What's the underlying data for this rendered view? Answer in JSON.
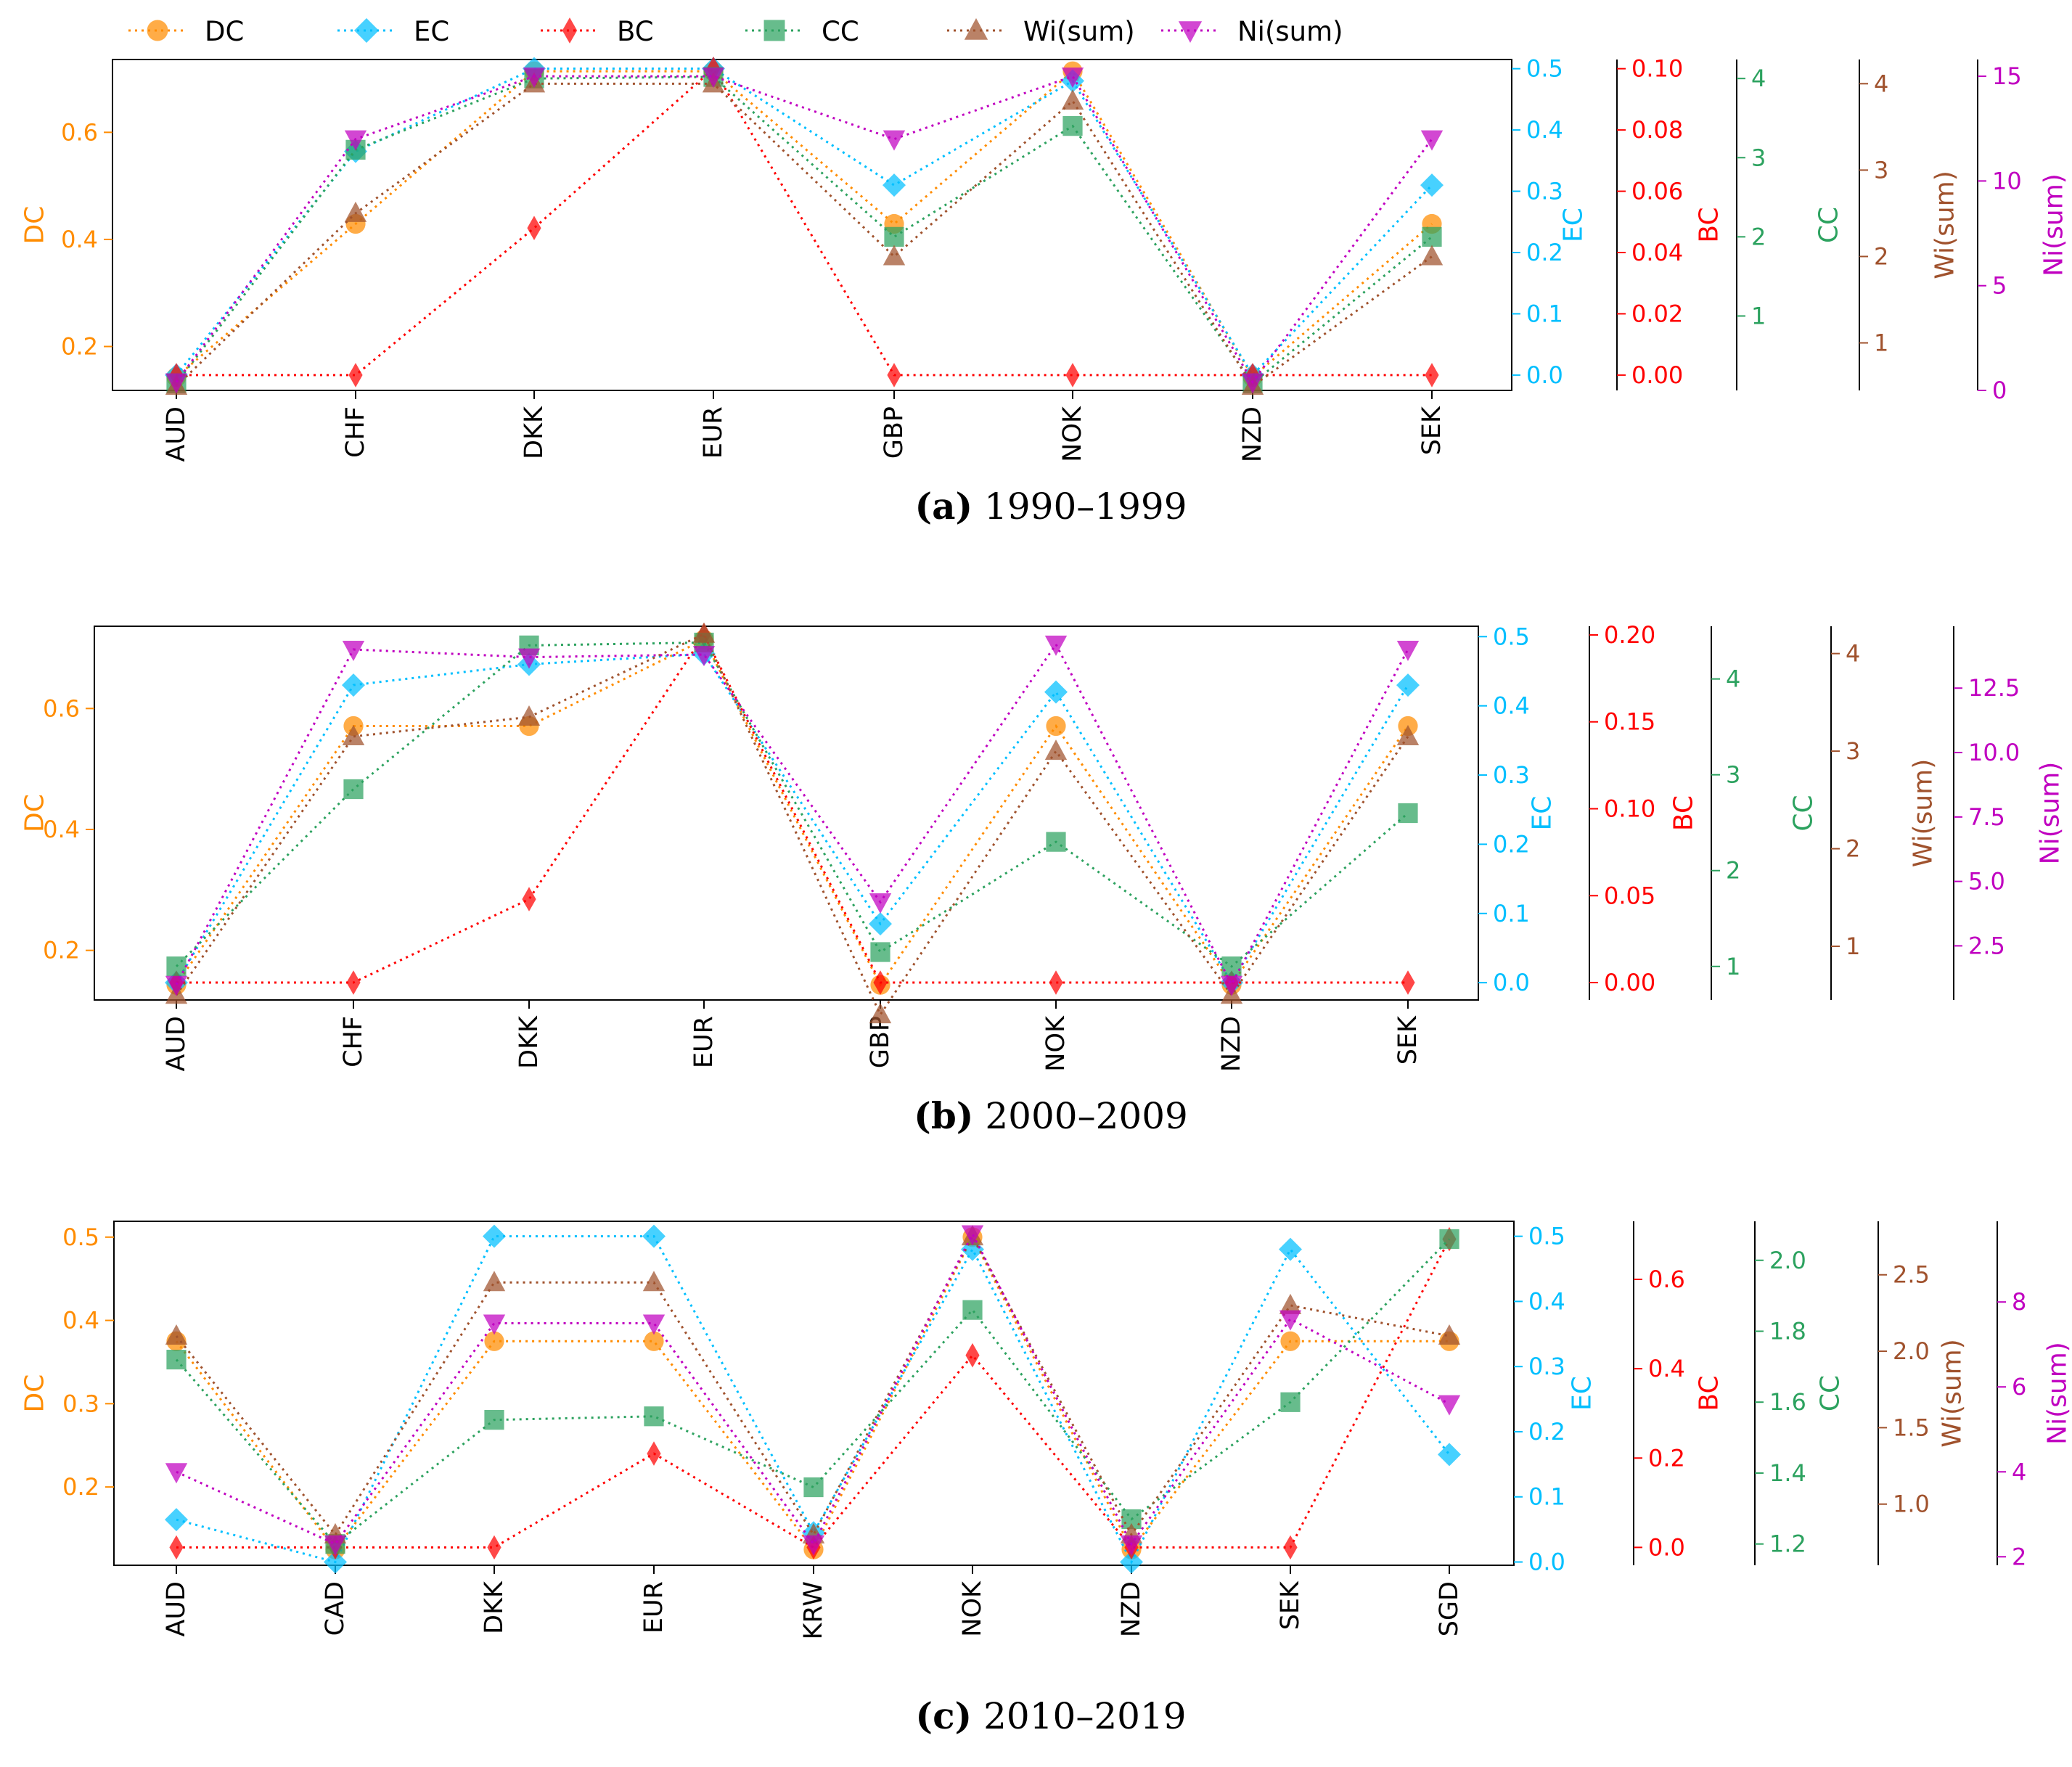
{
  "legend": [
    {
      "name": "DC",
      "color": "#ff8c00",
      "marker": "circle"
    },
    {
      "name": "EC",
      "color": "#00bfff",
      "marker": "diamond"
    },
    {
      "name": "BC",
      "color": "#ff0000",
      "marker": "thin-diamond"
    },
    {
      "name": "CC",
      "color": "#2ca25f",
      "marker": "square"
    },
    {
      "name": "Wi(sum)",
      "color": "#a0522d",
      "marker": "triangle-up"
    },
    {
      "name": "Ni(sum)",
      "color": "#c000c0",
      "marker": "triangle-down"
    }
  ],
  "chart_data": [
    {
      "type": "line",
      "caption_label": "(a)",
      "caption_period": "1990–1999",
      "categories": [
        "AUD",
        "CHF",
        "DKK",
        "EUR",
        "GBP",
        "NOK",
        "NZD",
        "SEK"
      ],
      "axes": [
        {
          "name": "DC",
          "color": "#ff8c00",
          "range": [
            0.118,
            0.736
          ],
          "ticks": [
            0.2,
            0.4,
            0.6
          ],
          "tick_labels": [
            "0.2",
            "0.4",
            "0.6"
          ]
        },
        {
          "name": "EC",
          "color": "#00bfff",
          "range": [
            -0.025,
            0.515
          ],
          "ticks": [
            0,
            0.1,
            0.2,
            0.3,
            0.4,
            0.5
          ],
          "tick_labels": [
            "0.0",
            "0.1",
            "0.2",
            "0.3",
            "0.4",
            "0.5"
          ]
        },
        {
          "name": "BC",
          "color": "#ff0000",
          "range": [
            -0.005,
            0.103
          ],
          "ticks": [
            0,
            0.02,
            0.04,
            0.06,
            0.08,
            0.1
          ],
          "tick_labels": [
            "0.00",
            "0.02",
            "0.04",
            "0.06",
            "0.08",
            "0.10"
          ]
        },
        {
          "name": "CC",
          "color": "#2ca25f",
          "range": [
            0.06,
            4.24
          ],
          "ticks": [
            1,
            2,
            3,
            4
          ],
          "tick_labels": [
            "1",
            "2",
            "3",
            "4"
          ]
        },
        {
          "name": "Wi(sum)",
          "color": "#a0522d",
          "range": [
            0.45,
            4.28
          ],
          "ticks": [
            1,
            2,
            3,
            4
          ],
          "tick_labels": [
            "1",
            "2",
            "3",
            "4"
          ]
        },
        {
          "name": "Ni(sum)",
          "color": "#c000c0",
          "range": [
            0,
            15.8
          ],
          "ticks": [
            0,
            5,
            10,
            15
          ],
          "tick_labels": [
            "0",
            "5",
            "10",
            "15"
          ]
        }
      ],
      "series": [
        {
          "name": "DC",
          "values": [
            0.143,
            0.429,
            0.714,
            0.714,
            0.429,
            0.714,
            0.143,
            0.429
          ]
        },
        {
          "name": "EC",
          "values": [
            0.0,
            0.365,
            0.5,
            0.5,
            0.31,
            0.48,
            0.0,
            0.31
          ]
        },
        {
          "name": "BC",
          "values": [
            0.0,
            0.0,
            0.048,
            0.1,
            0.0,
            0.0,
            0.0,
            0.0
          ]
        },
        {
          "name": "CC",
          "values": [
            0.15,
            3.1,
            4.0,
            4.02,
            2.0,
            3.4,
            0.15,
            2.0
          ]
        },
        {
          "name": "Wi(sum)",
          "values": [
            0.5,
            2.5,
            4.0,
            4.0,
            2.0,
            3.8,
            0.5,
            2.0
          ]
        },
        {
          "name": "Ni(sum)",
          "values": [
            0.4,
            12.0,
            15.0,
            15.0,
            12.0,
            15.0,
            0.4,
            12.0
          ]
        }
      ]
    },
    {
      "type": "line",
      "caption_label": "(b)",
      "caption_period": "2000–2009",
      "categories": [
        "AUD",
        "CHF",
        "DKK",
        "EUR",
        "GBP",
        "NOK",
        "NZD",
        "SEK"
      ],
      "axes": [
        {
          "name": "DC",
          "color": "#ff8c00",
          "range": [
            0.118,
            0.736
          ],
          "ticks": [
            0.2,
            0.4,
            0.6
          ],
          "tick_labels": [
            "0.2",
            "0.4",
            "0.6"
          ]
        },
        {
          "name": "EC",
          "color": "#00bfff",
          "range": [
            -0.025,
            0.515
          ],
          "ticks": [
            0,
            0.1,
            0.2,
            0.3,
            0.4,
            0.5
          ],
          "tick_labels": [
            "0.0",
            "0.1",
            "0.2",
            "0.3",
            "0.4",
            "0.5"
          ]
        },
        {
          "name": "BC",
          "color": "#ff0000",
          "range": [
            -0.01,
            0.205
          ],
          "ticks": [
            0,
            0.05,
            0.1,
            0.15,
            0.2
          ],
          "tick_labels": [
            "0.00",
            "0.05",
            "0.10",
            "0.15",
            "0.20"
          ]
        },
        {
          "name": "CC",
          "color": "#2ca25f",
          "range": [
            0.65,
            4.55
          ],
          "ticks": [
            1,
            2,
            3,
            4
          ],
          "tick_labels": [
            "1",
            "2",
            "3",
            "4"
          ]
        },
        {
          "name": "Wi(sum)",
          "color": "#a0522d",
          "range": [
            0.45,
            4.28
          ],
          "ticks": [
            1,
            2,
            3,
            4
          ],
          "tick_labels": [
            "1",
            "2",
            "3",
            "4"
          ]
        },
        {
          "name": "Ni(sum)",
          "color": "#c000c0",
          "range": [
            0.4,
            14.9
          ],
          "ticks": [
            2.5,
            5,
            7.5,
            10,
            12.5
          ],
          "tick_labels": [
            "2.5",
            "5.0",
            "7.5",
            "10.0",
            "12.5"
          ]
        }
      ],
      "series": [
        {
          "name": "DC",
          "values": [
            0.143,
            0.571,
            0.571,
            0.714,
            0.143,
            0.571,
            0.143,
            0.571
          ]
        },
        {
          "name": "EC",
          "values": [
            0.0,
            0.43,
            0.46,
            0.475,
            0.085,
            0.42,
            0.0,
            0.43
          ]
        },
        {
          "name": "BC",
          "values": [
            0.0,
            0.0,
            0.048,
            0.2,
            0.0,
            0.0,
            0.0,
            0.0
          ]
        },
        {
          "name": "CC",
          "values": [
            1.0,
            2.85,
            4.35,
            4.38,
            1.15,
            2.3,
            1.0,
            2.6
          ]
        },
        {
          "name": "Wi(sum)",
          "values": [
            0.5,
            3.15,
            3.35,
            4.2,
            0.3,
            3.0,
            0.5,
            3.15
          ]
        },
        {
          "name": "Ni(sum)",
          "values": [
            1.0,
            14.0,
            13.7,
            13.8,
            4.2,
            14.2,
            1.0,
            14.0
          ]
        }
      ]
    },
    {
      "type": "line",
      "caption_label": "(c)",
      "caption_period": "2010–2019",
      "categories": [
        "AUD",
        "CAD",
        "DKK",
        "EUR",
        "KRW",
        "NOK",
        "NZD",
        "SEK",
        "SGD"
      ],
      "axes": [
        {
          "name": "DC",
          "color": "#ff8c00",
          "range": [
            0.106,
            0.519
          ],
          "ticks": [
            0.2,
            0.3,
            0.4,
            0.5
          ],
          "tick_labels": [
            "0.2",
            "0.3",
            "0.4",
            "0.5"
          ]
        },
        {
          "name": "EC",
          "color": "#00bfff",
          "range": [
            -0.005,
            0.523
          ],
          "ticks": [
            0,
            0.1,
            0.2,
            0.3,
            0.4,
            0.5
          ],
          "tick_labels": [
            "0.0",
            "0.1",
            "0.2",
            "0.3",
            "0.4",
            "0.5"
          ]
        },
        {
          "name": "BC",
          "color": "#ff0000",
          "range": [
            -0.04,
            0.73
          ],
          "ticks": [
            0,
            0.2,
            0.4,
            0.6
          ],
          "tick_labels": [
            "0.0",
            "0.2",
            "0.4",
            "0.6"
          ]
        },
        {
          "name": "CC",
          "color": "#2ca25f",
          "range": [
            1.14,
            2.11
          ],
          "ticks": [
            1.2,
            1.4,
            1.6,
            1.8,
            2.0
          ],
          "tick_labels": [
            "1.2",
            "1.4",
            "1.6",
            "1.8",
            "2.0"
          ]
        },
        {
          "name": "Wi(sum)",
          "color": "#a0522d",
          "range": [
            0.6,
            2.85
          ],
          "ticks": [
            1.0,
            1.5,
            2.0,
            2.5
          ],
          "tick_labels": [
            "1.0",
            "1.5",
            "2.0",
            "2.5"
          ]
        },
        {
          "name": "Ni(sum)",
          "color": "#c000c0",
          "range": [
            1.8,
            9.9
          ],
          "ticks": [
            2,
            4,
            6,
            8
          ],
          "tick_labels": [
            "2",
            "4",
            "6",
            "8"
          ]
        }
      ],
      "series": [
        {
          "name": "DC",
          "values": [
            0.375,
            0.125,
            0.375,
            0.375,
            0.125,
            0.5,
            0.125,
            0.375,
            0.375
          ]
        },
        {
          "name": "EC",
          "values": [
            0.065,
            0.0,
            0.5,
            0.5,
            0.045,
            0.48,
            0.0,
            0.48,
            0.165
          ]
        },
        {
          "name": "BC",
          "values": [
            0.0,
            0.0,
            0.0,
            0.21,
            0.0,
            0.43,
            0.0,
            0.0,
            0.69
          ]
        },
        {
          "name": "CC",
          "values": [
            1.72,
            1.2,
            1.55,
            1.56,
            1.36,
            1.86,
            1.27,
            1.6,
            2.06
          ]
        },
        {
          "name": "Wi(sum)",
          "values": [
            2.1,
            0.8,
            2.45,
            2.45,
            0.8,
            2.75,
            0.8,
            2.3,
            2.1
          ]
        },
        {
          "name": "Ni(sum)",
          "values": [
            4.0,
            2.3,
            7.5,
            7.5,
            2.3,
            9.6,
            2.3,
            7.6,
            5.6
          ]
        }
      ]
    }
  ]
}
